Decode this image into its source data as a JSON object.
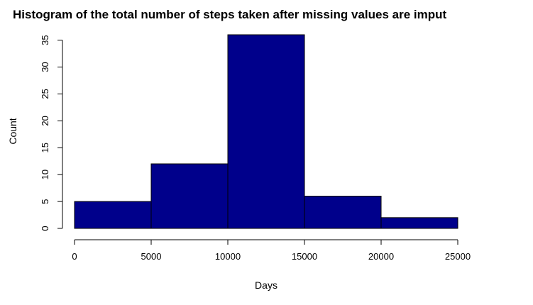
{
  "chart_data": {
    "type": "bar",
    "title": "Histogram of the total number of steps taken after missing values are imput",
    "xlabel": "Days",
    "ylabel": "Count",
    "bins": [
      {
        "from": 0,
        "to": 5000,
        "count": 5
      },
      {
        "from": 5000,
        "to": 10000,
        "count": 12
      },
      {
        "from": 10000,
        "to": 15000,
        "count": 36
      },
      {
        "from": 15000,
        "to": 20000,
        "count": 6
      },
      {
        "from": 20000,
        "to": 25000,
        "count": 2
      }
    ],
    "xlim": [
      0,
      25000
    ],
    "ylim": [
      0,
      36
    ],
    "x_ticks": [
      "0",
      "5000",
      "10000",
      "15000",
      "20000",
      "25000"
    ],
    "y_ticks": [
      "0",
      "5",
      "10",
      "15",
      "20",
      "25",
      "30",
      "35"
    ],
    "bar_color": "#00008B",
    "grid": false
  }
}
